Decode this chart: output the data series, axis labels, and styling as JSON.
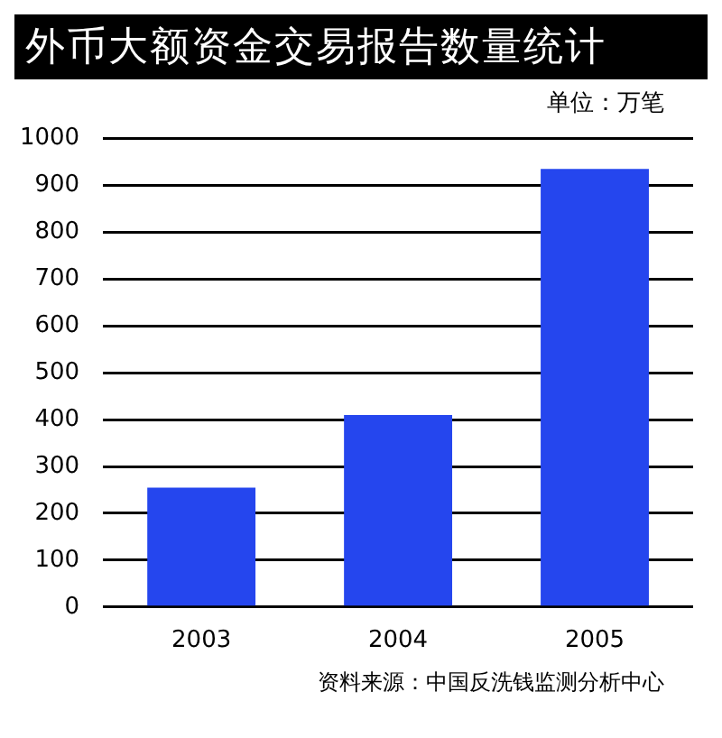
{
  "chart_data": {
    "type": "bar",
    "title": "外币大额资金交易报告数量统计",
    "subtitle": "单位：万笔",
    "categories": [
      "2003",
      "2004",
      "2005"
    ],
    "series": [
      {
        "color": "#2546ee",
        "values": [
          255,
          410,
          935
        ]
      }
    ],
    "ylim": [
      0,
      1000
    ],
    "yticks": [
      0,
      100,
      200,
      300,
      400,
      500,
      600,
      700,
      800,
      900,
      1000
    ],
    "grid": "y",
    "legend": false,
    "annotations": [
      "资料来源：中国反洗钱监测分析中心"
    ]
  }
}
